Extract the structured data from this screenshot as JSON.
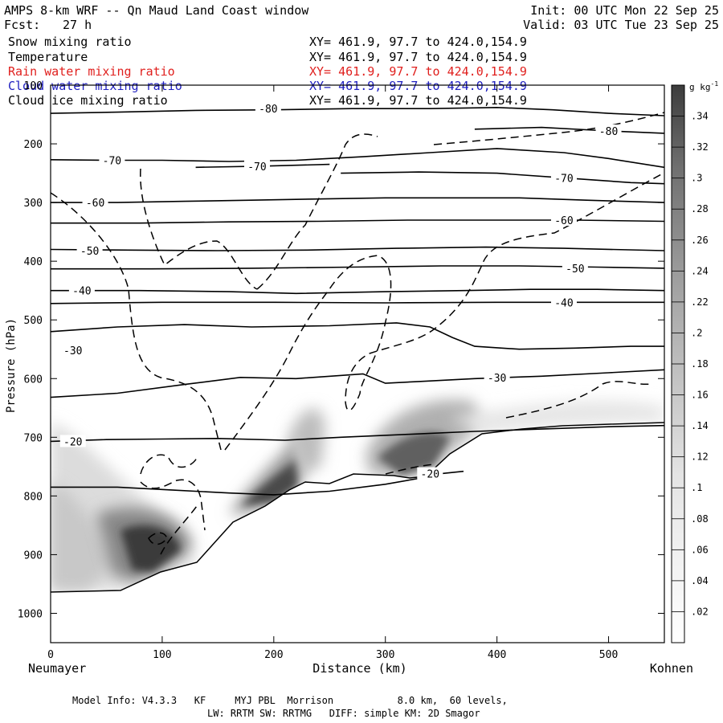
{
  "header": {
    "title": "AMPS 8-km WRF -- Qn Maud Land Coast window",
    "fcst_label": "Fcst:",
    "fcst_value": "27 h",
    "init": "Init: 00 UTC Mon 22 Sep 25",
    "valid": "Valid: 03 UTC Tue 23 Sep 25"
  },
  "fields": [
    {
      "name": "Snow mixing ratio",
      "xy": "XY= 461.9, 97.7 to 424.0,154.9",
      "color": "#000000"
    },
    {
      "name": "Temperature",
      "xy": "XY= 461.9, 97.7 to 424.0,154.9",
      "color": "#000000"
    },
    {
      "name": "Rain water mixing ratio",
      "xy": "XY= 461.9, 97.7 to 424.0,154.9",
      "color": "#e0201e"
    },
    {
      "name": "Cloud water mixing ratio",
      "xy": "XY= 461.9, 97.7 to 424.0,154.9",
      "color": "#2020c0"
    },
    {
      "name": "Cloud ice mixing ratio",
      "xy": "XY= 461.9, 97.7 to 424.0,154.9",
      "color": "#000000"
    }
  ],
  "footer": {
    "line1": "Model Info: V4.3.3   KF     MYJ PBL  Morrison           8.0 km,  60 levels,",
    "line2": "LW: RRTM SW: RRTMG   DIFF: simple KM: 2D Smagor"
  },
  "chart_data": {
    "type": "contour",
    "title": "AMPS 8-km WRF -- Qn Maud Land Coast window",
    "xlabel": "Distance (km)",
    "ylabel": "Pressure (hPa)",
    "xlim": [
      0,
      550
    ],
    "ylim": [
      1050,
      100
    ],
    "x_ticks": [
      0,
      100,
      200,
      300,
      400,
      500
    ],
    "y_ticks": [
      100,
      200,
      300,
      400,
      500,
      600,
      700,
      800,
      900,
      1000
    ],
    "left_endpoint": "Neumayer",
    "right_endpoint": "Kohnen",
    "colorbar": {
      "units": "g kg",
      "units_exp": "-1",
      "levels": [
        ".02",
        ".04",
        ".06",
        ".08",
        ".1",
        ".12",
        ".14",
        ".16",
        ".18",
        ".2",
        ".22",
        ".24",
        ".26",
        ".28",
        ".3",
        ".32",
        ".34"
      ],
      "min": 0.0,
      "max": 0.36
    },
    "temperature_contours": [
      {
        "label": "-80",
        "label_x": 195,
        "label_p": 140,
        "points": [
          [
            0,
            148
          ],
          [
            60,
            146
          ],
          [
            130,
            143
          ],
          [
            200,
            142
          ],
          [
            270,
            140
          ],
          [
            340,
            140
          ],
          [
            400,
            138
          ],
          [
            450,
            142
          ],
          [
            500,
            148
          ],
          [
            550,
            152
          ]
        ]
      },
      {
        "label": "-80",
        "label_x": 500,
        "label_p": 178,
        "points": [
          [
            380,
            175
          ],
          [
            440,
            172
          ],
          [
            500,
            178
          ],
          [
            550,
            182
          ]
        ]
      },
      {
        "label": "-70",
        "label_x": 55,
        "label_p": 228,
        "points": [
          [
            0,
            227
          ],
          [
            50,
            228
          ],
          [
            100,
            228
          ],
          [
            160,
            230
          ],
          [
            220,
            228
          ],
          [
            280,
            222
          ],
          [
            340,
            215
          ],
          [
            400,
            208
          ],
          [
            460,
            215
          ],
          [
            500,
            225
          ],
          [
            550,
            240
          ]
        ]
      },
      {
        "label": "-70",
        "label_x": 460,
        "label_p": 258,
        "points": [
          [
            260,
            250
          ],
          [
            330,
            248
          ],
          [
            400,
            250
          ],
          [
            460,
            258
          ],
          [
            520,
            266
          ],
          [
            550,
            268
          ]
        ]
      },
      {
        "label": "-70",
        "label_x": 185,
        "label_p": 238,
        "points": [
          [
            130,
            240
          ],
          [
            190,
            238
          ],
          [
            250,
            235
          ]
        ]
      },
      {
        "label": "-60",
        "label_x": 40,
        "label_p": 300,
        "points": [
          [
            0,
            300
          ],
          [
            60,
            300
          ],
          [
            120,
            298
          ],
          [
            180,
            296
          ],
          [
            240,
            294
          ],
          [
            300,
            292
          ],
          [
            360,
            292
          ],
          [
            420,
            292
          ],
          [
            480,
            296
          ],
          [
            550,
            300
          ]
        ]
      },
      {
        "label": "-60",
        "label_x": 460,
        "label_p": 330,
        "points": [
          [
            0,
            335
          ],
          [
            80,
            335
          ],
          [
            160,
            333
          ],
          [
            240,
            332
          ],
          [
            320,
            330
          ],
          [
            400,
            330
          ],
          [
            470,
            330
          ],
          [
            550,
            332
          ]
        ]
      },
      {
        "label": "-50",
        "label_x": 35,
        "label_p": 382,
        "points": [
          [
            0,
            380
          ],
          [
            70,
            381
          ],
          [
            150,
            382
          ],
          [
            230,
            381
          ],
          [
            310,
            378
          ],
          [
            390,
            376
          ],
          [
            460,
            378
          ],
          [
            550,
            382
          ]
        ]
      },
      {
        "label": "-50",
        "label_x": 470,
        "label_p": 412,
        "points": [
          [
            0,
            413
          ],
          [
            90,
            413
          ],
          [
            180,
            412
          ],
          [
            270,
            410
          ],
          [
            350,
            408
          ],
          [
            420,
            408
          ],
          [
            490,
            410
          ],
          [
            550,
            412
          ]
        ]
      },
      {
        "label": "-40",
        "label_x": 28,
        "label_p": 450,
        "points": [
          [
            0,
            450
          ],
          [
            80,
            450
          ],
          [
            160,
            452
          ],
          [
            220,
            455
          ],
          [
            300,
            452
          ],
          [
            370,
            450
          ],
          [
            430,
            448
          ],
          [
            490,
            448
          ],
          [
            550,
            450
          ]
        ]
      },
      {
        "label": "-40",
        "label_x": 460,
        "label_p": 470,
        "points": [
          [
            0,
            472
          ],
          [
            100,
            470
          ],
          [
            200,
            470
          ],
          [
            300,
            471
          ],
          [
            400,
            470
          ],
          [
            470,
            470
          ],
          [
            550,
            470
          ]
        ]
      },
      {
        "label": "-30",
        "label_x": 20,
        "label_p": 552,
        "points": [
          [
            0,
            520
          ],
          [
            60,
            512
          ],
          [
            120,
            508
          ],
          [
            180,
            512
          ],
          [
            250,
            510
          ],
          [
            310,
            505
          ],
          [
            340,
            512
          ],
          [
            360,
            530
          ],
          [
            380,
            545
          ],
          [
            420,
            550
          ],
          [
            470,
            548
          ],
          [
            520,
            545
          ],
          [
            550,
            545
          ]
        ]
      },
      {
        "label": "-30",
        "label_x": 400,
        "label_p": 598,
        "points": [
          [
            0,
            632
          ],
          [
            60,
            625
          ],
          [
            120,
            610
          ],
          [
            170,
            598
          ],
          [
            220,
            600
          ],
          [
            280,
            592
          ],
          [
            300,
            608
          ],
          [
            330,
            605
          ],
          [
            380,
            600
          ],
          [
            440,
            596
          ],
          [
            500,
            590
          ],
          [
            550,
            585
          ]
        ]
      },
      {
        "label": "-20",
        "label_x": 20,
        "label_p": 707,
        "points": [
          [
            0,
            707
          ],
          [
            50,
            704
          ],
          [
            100,
            703
          ],
          [
            150,
            702
          ],
          [
            210,
            705
          ],
          [
            260,
            700
          ],
          [
            320,
            695
          ],
          [
            380,
            690
          ],
          [
            440,
            686
          ],
          [
            500,
            682
          ],
          [
            550,
            680
          ]
        ]
      },
      {
        "label": "-20",
        "label_x": 340,
        "label_p": 762,
        "points": [
          [
            0,
            785
          ],
          [
            60,
            785
          ],
          [
            110,
            790
          ],
          [
            160,
            795
          ],
          [
            200,
            798
          ],
          [
            250,
            792
          ],
          [
            300,
            780
          ],
          [
            330,
            770
          ],
          [
            350,
            762
          ],
          [
            370,
            758
          ]
        ]
      }
    ]
  }
}
